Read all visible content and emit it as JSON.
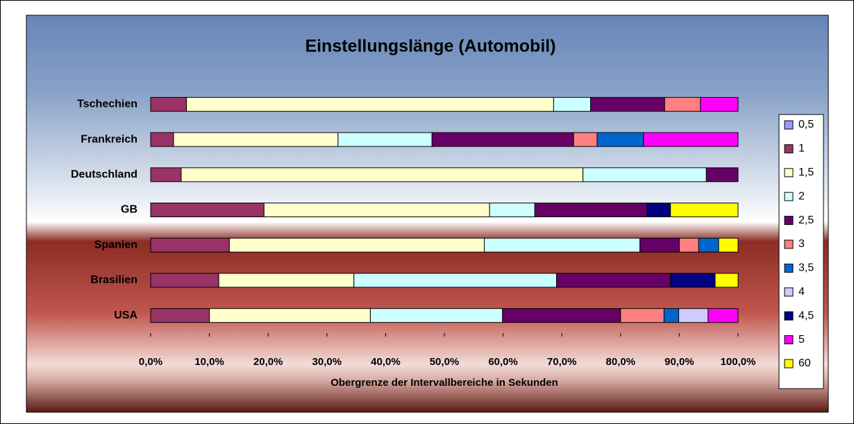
{
  "chart_data": {
    "type": "stacked_barh",
    "title": "Einstellungslänge (Automobil)",
    "x_label": "Obergrenze der Intervallbereiche in Sekunden",
    "categories": [
      "Tschechien",
      "Frankreich",
      "Deutschland",
      "GB",
      "Spanien",
      "Brasilien",
      "USA"
    ],
    "series": [
      {
        "name": "0,5",
        "color": "#9999ff",
        "values": [
          0,
          0,
          0,
          0,
          0,
          0,
          0
        ]
      },
      {
        "name": "1",
        "color": "#993366",
        "values": [
          6.1,
          3.9,
          5.2,
          19.3,
          13.4,
          11.6,
          10.0
        ]
      },
      {
        "name": "1,5",
        "color": "#ffffcc",
        "values": [
          62.5,
          28.0,
          68.4,
          38.4,
          43.4,
          23.0,
          27.4
        ]
      },
      {
        "name": "2",
        "color": "#ccffff",
        "values": [
          6.3,
          16.0,
          21.0,
          7.7,
          26.5,
          34.5,
          22.5
        ]
      },
      {
        "name": "2,5",
        "color": "#660066",
        "values": [
          12.6,
          24.1,
          5.4,
          19.1,
          6.7,
          19.4,
          20.1
        ]
      },
      {
        "name": "3",
        "color": "#ff8080",
        "values": [
          6.1,
          4.0,
          0,
          0,
          3.3,
          0,
          7.4
        ]
      },
      {
        "name": "3,5",
        "color": "#0066cc",
        "values": [
          0,
          7.9,
          0,
          0,
          3.4,
          0,
          2.5
        ]
      },
      {
        "name": "4",
        "color": "#ccccff",
        "values": [
          0,
          0,
          0,
          0,
          0,
          0,
          5.0
        ]
      },
      {
        "name": "4,5",
        "color": "#000080",
        "values": [
          0,
          0,
          0,
          4.0,
          0,
          7.6,
          0
        ]
      },
      {
        "name": "5",
        "color": "#ff00ff",
        "values": [
          6.4,
          16.1,
          0,
          0,
          0,
          0,
          5.1
        ]
      },
      {
        "name": "60",
        "color": "#ffff00",
        "values": [
          0,
          0,
          0,
          11.5,
          3.3,
          3.9,
          0
        ]
      }
    ],
    "xlim": [
      0,
      100
    ],
    "xticks": [
      {
        "value": 0,
        "label": "0,0%"
      },
      {
        "value": 10,
        "label": "10,0%"
      },
      {
        "value": 20,
        "label": "20,0%"
      },
      {
        "value": 30,
        "label": "30,0%"
      },
      {
        "value": 40,
        "label": "40,0%"
      },
      {
        "value": 50,
        "label": "50,0%"
      },
      {
        "value": 60,
        "label": "60,0%"
      },
      {
        "value": 70,
        "label": "70,0%"
      },
      {
        "value": 80,
        "label": "80,0%"
      },
      {
        "value": 90,
        "label": "90,0%"
      },
      {
        "value": 100,
        "label": "100,0%"
      }
    ],
    "legend": "right"
  }
}
